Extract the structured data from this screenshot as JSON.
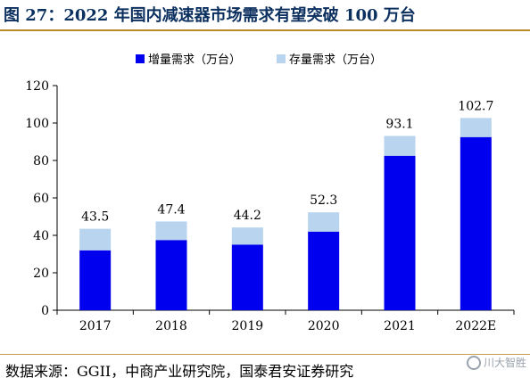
{
  "header": {
    "title": "图 27：2022 年国内减速器市场需求有望突破 100 万台"
  },
  "footer": {
    "source": "数据来源：GGII，中商产业研究院，国泰君安证券研究",
    "watermark": "川大智胜"
  },
  "colors": {
    "title": "#0b2f5e",
    "rule": "#b88a2a",
    "increment": "#0000ee",
    "stock": "#b8d4ee",
    "axis": "#000000"
  },
  "chart_data": {
    "type": "bar",
    "stacked": true,
    "categories": [
      "2017",
      "2018",
      "2019",
      "2020",
      "2021",
      "2022E"
    ],
    "series": [
      {
        "name": "增量需求（万台）",
        "color": "#0000ee",
        "values": [
          32,
          37.5,
          35,
          42,
          82.5,
          92.5
        ]
      },
      {
        "name": "存量需求（万台）",
        "color": "#b8d4ee",
        "values": [
          11.5,
          9.9,
          9.2,
          10.3,
          10.6,
          10.2
        ]
      }
    ],
    "totals": [
      "43.5",
      "47.4",
      "44.2",
      "52.3",
      "93.1",
      "102.7"
    ],
    "ylim": [
      0,
      120
    ],
    "yticks": [
      0,
      20,
      40,
      60,
      80,
      100,
      120
    ],
    "legend_position": "top-center",
    "grid": false
  }
}
